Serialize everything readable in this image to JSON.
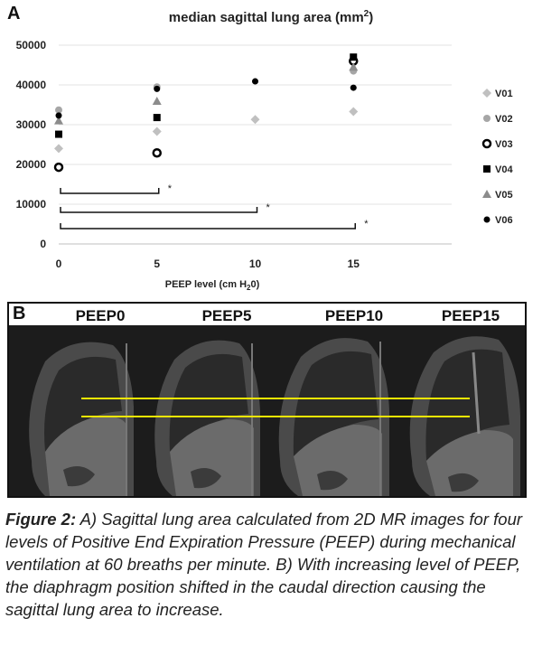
{
  "panel_a": {
    "letter": "A",
    "title_main": "median sagittal lung area (mm",
    "title_sup": "2",
    "title_end": ")",
    "x_label_main": "PEEP level (cm H",
    "x_label_sub": "2",
    "x_label_end": "0)",
    "significance_mark": "*"
  },
  "chart_data": {
    "type": "scatter",
    "x_ticks": [
      0,
      5,
      10,
      15
    ],
    "y_ticks": [
      0,
      10000,
      20000,
      30000,
      40000,
      50000
    ],
    "xlim": [
      0,
      20
    ],
    "ylim": [
      0,
      50000
    ],
    "grid": "horizontal",
    "legend_position": "right",
    "series": [
      {
        "name": "V01",
        "marker": "diamond",
        "color": "#c0c0c0",
        "points": [
          [
            0,
            24000
          ],
          [
            5,
            28300
          ],
          [
            10,
            31300
          ],
          [
            15,
            33300
          ]
        ]
      },
      {
        "name": "V02",
        "marker": "circle",
        "color": "#a6a6a6",
        "points": [
          [
            0,
            33700
          ],
          [
            5,
            39500
          ],
          [
            15,
            43500
          ]
        ]
      },
      {
        "name": "V03",
        "marker": "ring",
        "color": "#000000",
        "points": [
          [
            0,
            19300
          ],
          [
            5,
            22900
          ],
          [
            15,
            46000
          ]
        ]
      },
      {
        "name": "V04",
        "marker": "square",
        "color": "#000000",
        "points": [
          [
            0,
            27600
          ],
          [
            5,
            31800
          ],
          [
            15,
            47000
          ]
        ]
      },
      {
        "name": "V05",
        "marker": "triangle",
        "color": "#8c8c8c",
        "points": [
          [
            0,
            31000
          ],
          [
            5,
            35900
          ],
          [
            15,
            44500
          ]
        ]
      },
      {
        "name": "V06",
        "marker": "dot",
        "color": "#000000",
        "points": [
          [
            0,
            32300
          ],
          [
            5,
            39000
          ],
          [
            10,
            40900
          ],
          [
            15,
            39300
          ]
        ]
      }
    ],
    "brackets": [
      {
        "from": 0,
        "to": 5,
        "label": "*"
      },
      {
        "from": 0,
        "to": 10,
        "label": "*"
      },
      {
        "from": 0,
        "to": 15,
        "label": "*"
      }
    ]
  },
  "panel_b": {
    "letter": "B",
    "labels": [
      "PEEP0",
      "PEEP5",
      "PEEP10",
      "PEEP15"
    ],
    "guide_line_color": "#f2e600"
  },
  "caption": {
    "figure_label": "Figure 2:",
    "text": " A) Sagittal lung area calculated from 2D MR images for four levels of Positive End Expiration Pressure (PEEP) during mechanical ventilation at 60 breaths per minute. B) With increasing level of PEEP, the diaphragm position shifted in the caudal direction causing the sagittal lung area to increase."
  }
}
